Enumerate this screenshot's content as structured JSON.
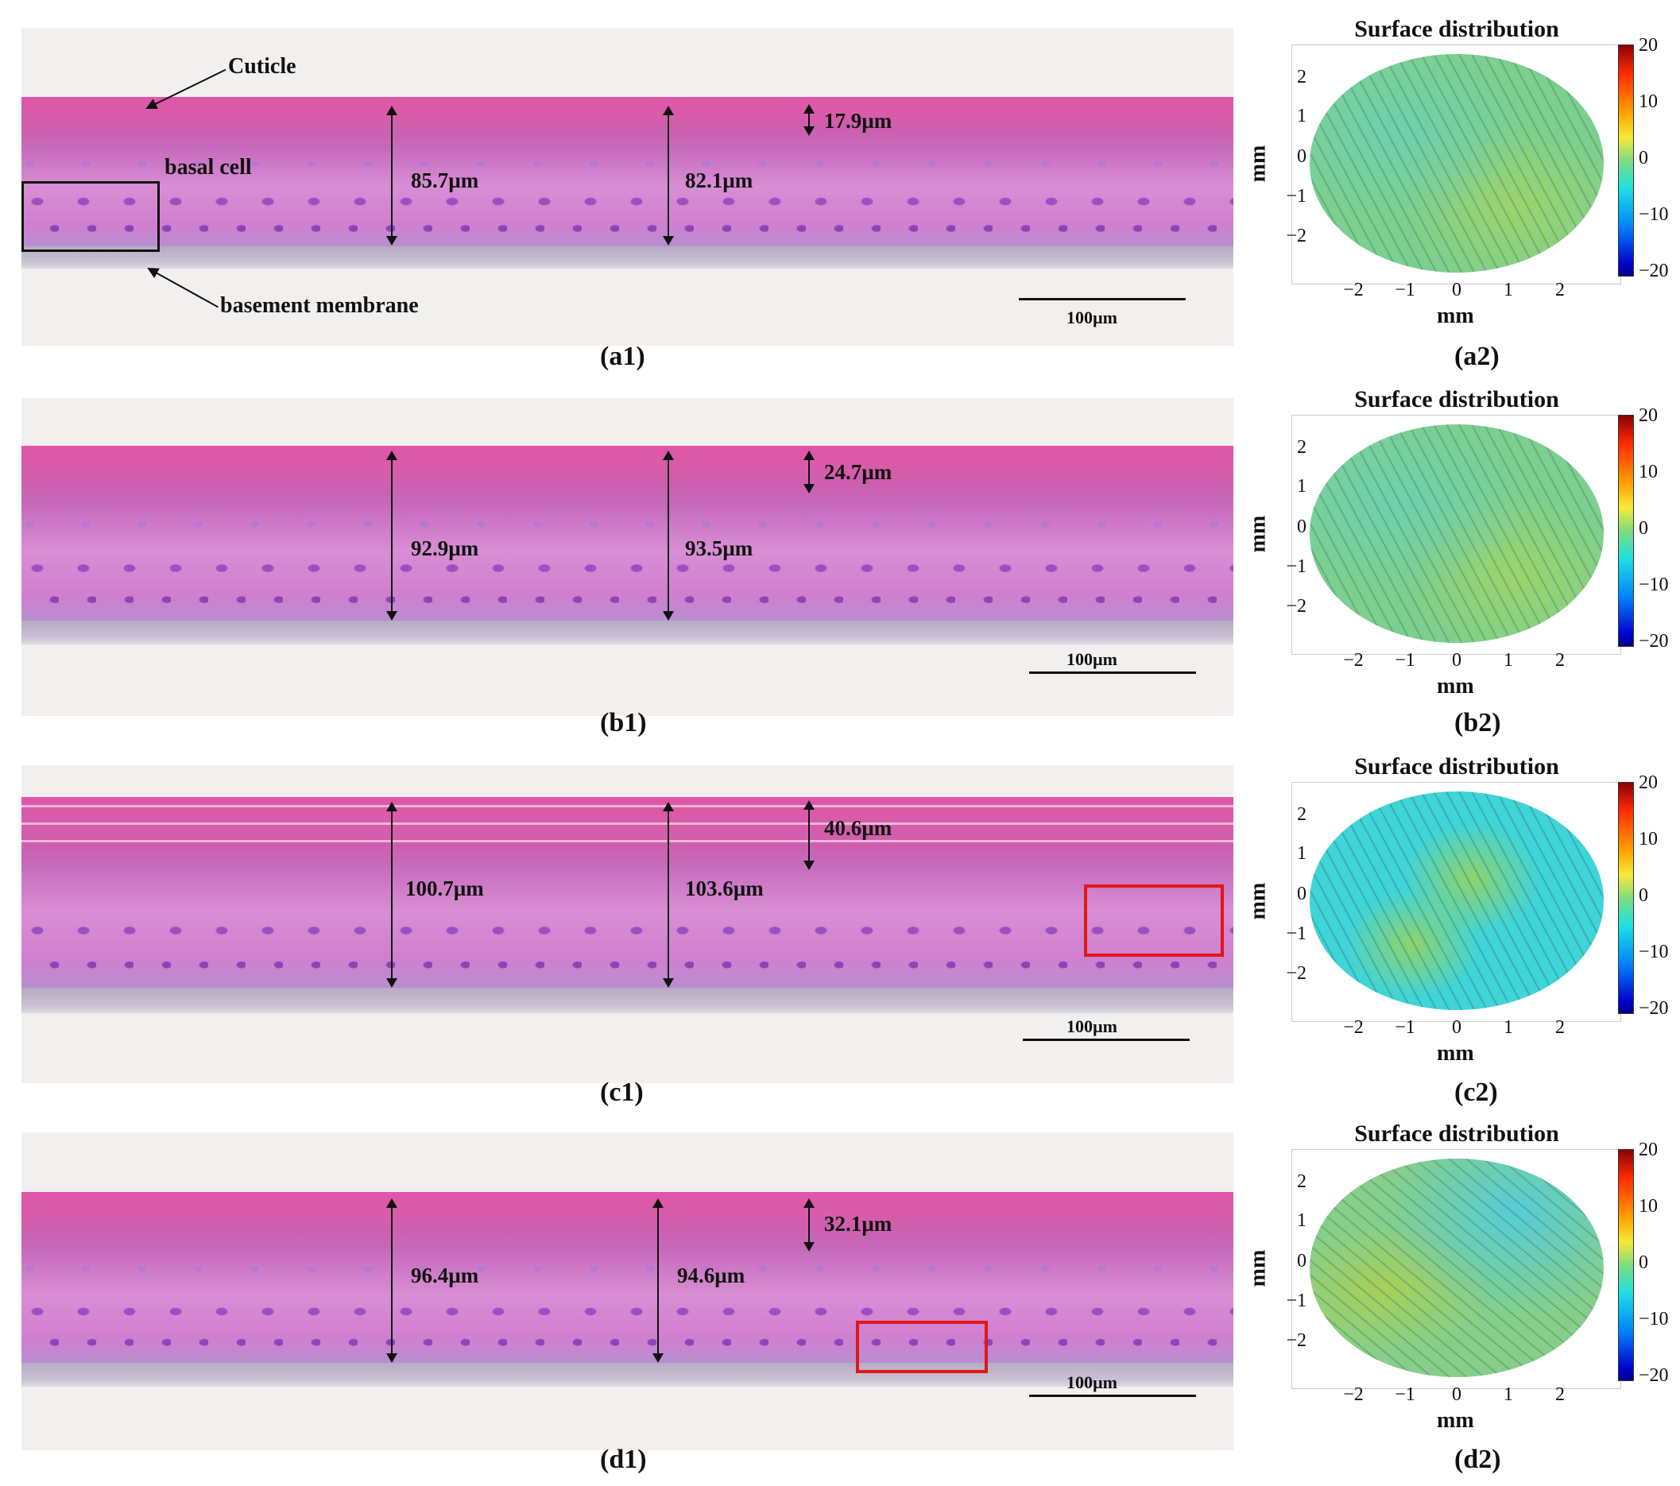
{
  "rows": [
    {
      "histo_label": "(a1)",
      "plot_label": "(a2)",
      "total_left": "85.7µm",
      "total_right": "82.1µm",
      "cuticle": "17.9µm",
      "scale": "100µm"
    },
    {
      "histo_label": "(b1)",
      "plot_label": "(b2)",
      "total_left": "92.9µm",
      "total_right": "93.5µm",
      "cuticle": "24.7µm",
      "scale": "100µm"
    },
    {
      "histo_label": "(c1)",
      "plot_label": "(c2)",
      "total_left": "100.7µm",
      "total_right": "103.6µm",
      "cuticle": "40.6µm",
      "scale": "100µm"
    },
    {
      "histo_label": "(d1)",
      "plot_label": "(d2)",
      "total_left": "96.4µm",
      "total_right": "94.6µm",
      "cuticle": "32.1µm",
      "scale": "100µm"
    }
  ],
  "annotations": {
    "cuticle": "Cuticle",
    "basal_cell": "basal cell",
    "basement_membrane": "basement membrane"
  },
  "plot": {
    "title": "Surface distribution",
    "xlabel": "mm",
    "ylabel": "mm",
    "yticks": [
      "2",
      "1",
      "0",
      "−1",
      "−2"
    ],
    "xticks": [
      "−2",
      "−1",
      "0",
      "1",
      "2"
    ],
    "colorbar_ticks": [
      "20",
      "10",
      "0",
      "−10",
      "−20"
    ],
    "colormap": "jet"
  },
  "colors": {
    "highlight_box": "#e01818",
    "annotation_box": "#111111"
  }
}
